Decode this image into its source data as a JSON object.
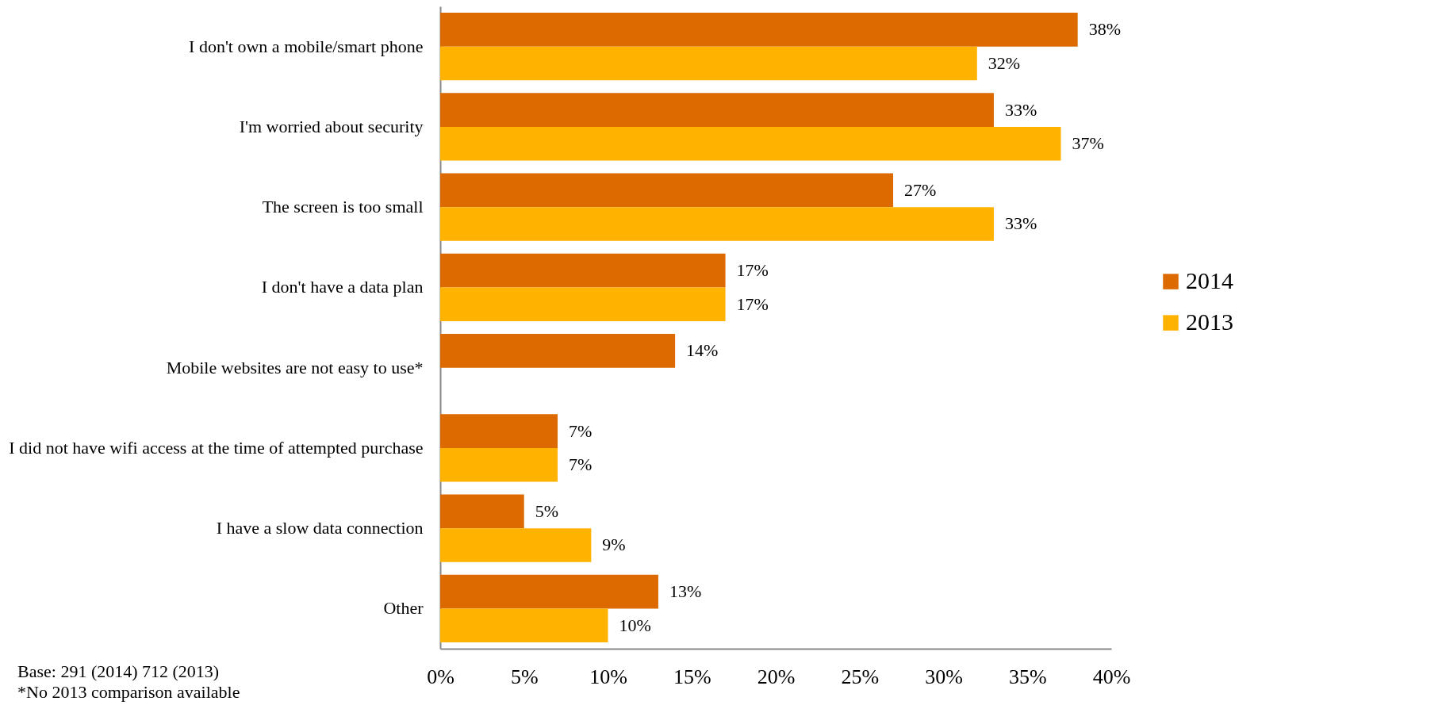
{
  "chart_data": {
    "type": "bar",
    "orientation": "horizontal",
    "categories": [
      "I don't own a mobile/smart phone",
      "I'm worried about security",
      "The screen is too small",
      "I don't have a data plan",
      "Mobile websites are not easy to use*",
      "I did not have wifi access at the time of attempted purchase",
      "I have a slow data connection",
      "Other"
    ],
    "series": [
      {
        "name": "2014",
        "color": "#dd6a00",
        "values": [
          38,
          33,
          27,
          17,
          14,
          7,
          5,
          13
        ],
        "value_labels": [
          "38%",
          "33%",
          "27%",
          "17%",
          "14%",
          "7%",
          "5%",
          "13%"
        ]
      },
      {
        "name": "2013",
        "color": "#ffb300",
        "values": [
          32,
          37,
          33,
          17,
          null,
          7,
          9,
          10
        ],
        "value_labels": [
          "32%",
          "37%",
          "33%",
          "17%",
          null,
          "7%",
          "9%",
          "10%"
        ]
      }
    ],
    "xlim": [
      0,
      40
    ],
    "xticks": [
      {
        "value": 0,
        "label": "0%"
      },
      {
        "value": 5,
        "label": "5%"
      },
      {
        "value": 10,
        "label": "10%"
      },
      {
        "value": 15,
        "label": "15%"
      },
      {
        "value": 20,
        "label": "20%"
      },
      {
        "value": 25,
        "label": "25%"
      },
      {
        "value": 30,
        "label": "30%"
      },
      {
        "value": 35,
        "label": "35%"
      },
      {
        "value": 40,
        "label": "40%"
      }
    ],
    "legend": "right",
    "annotations": [
      "Base: 291 (2014)  712 (2013)",
      "*No 2013 comparison available"
    ]
  }
}
